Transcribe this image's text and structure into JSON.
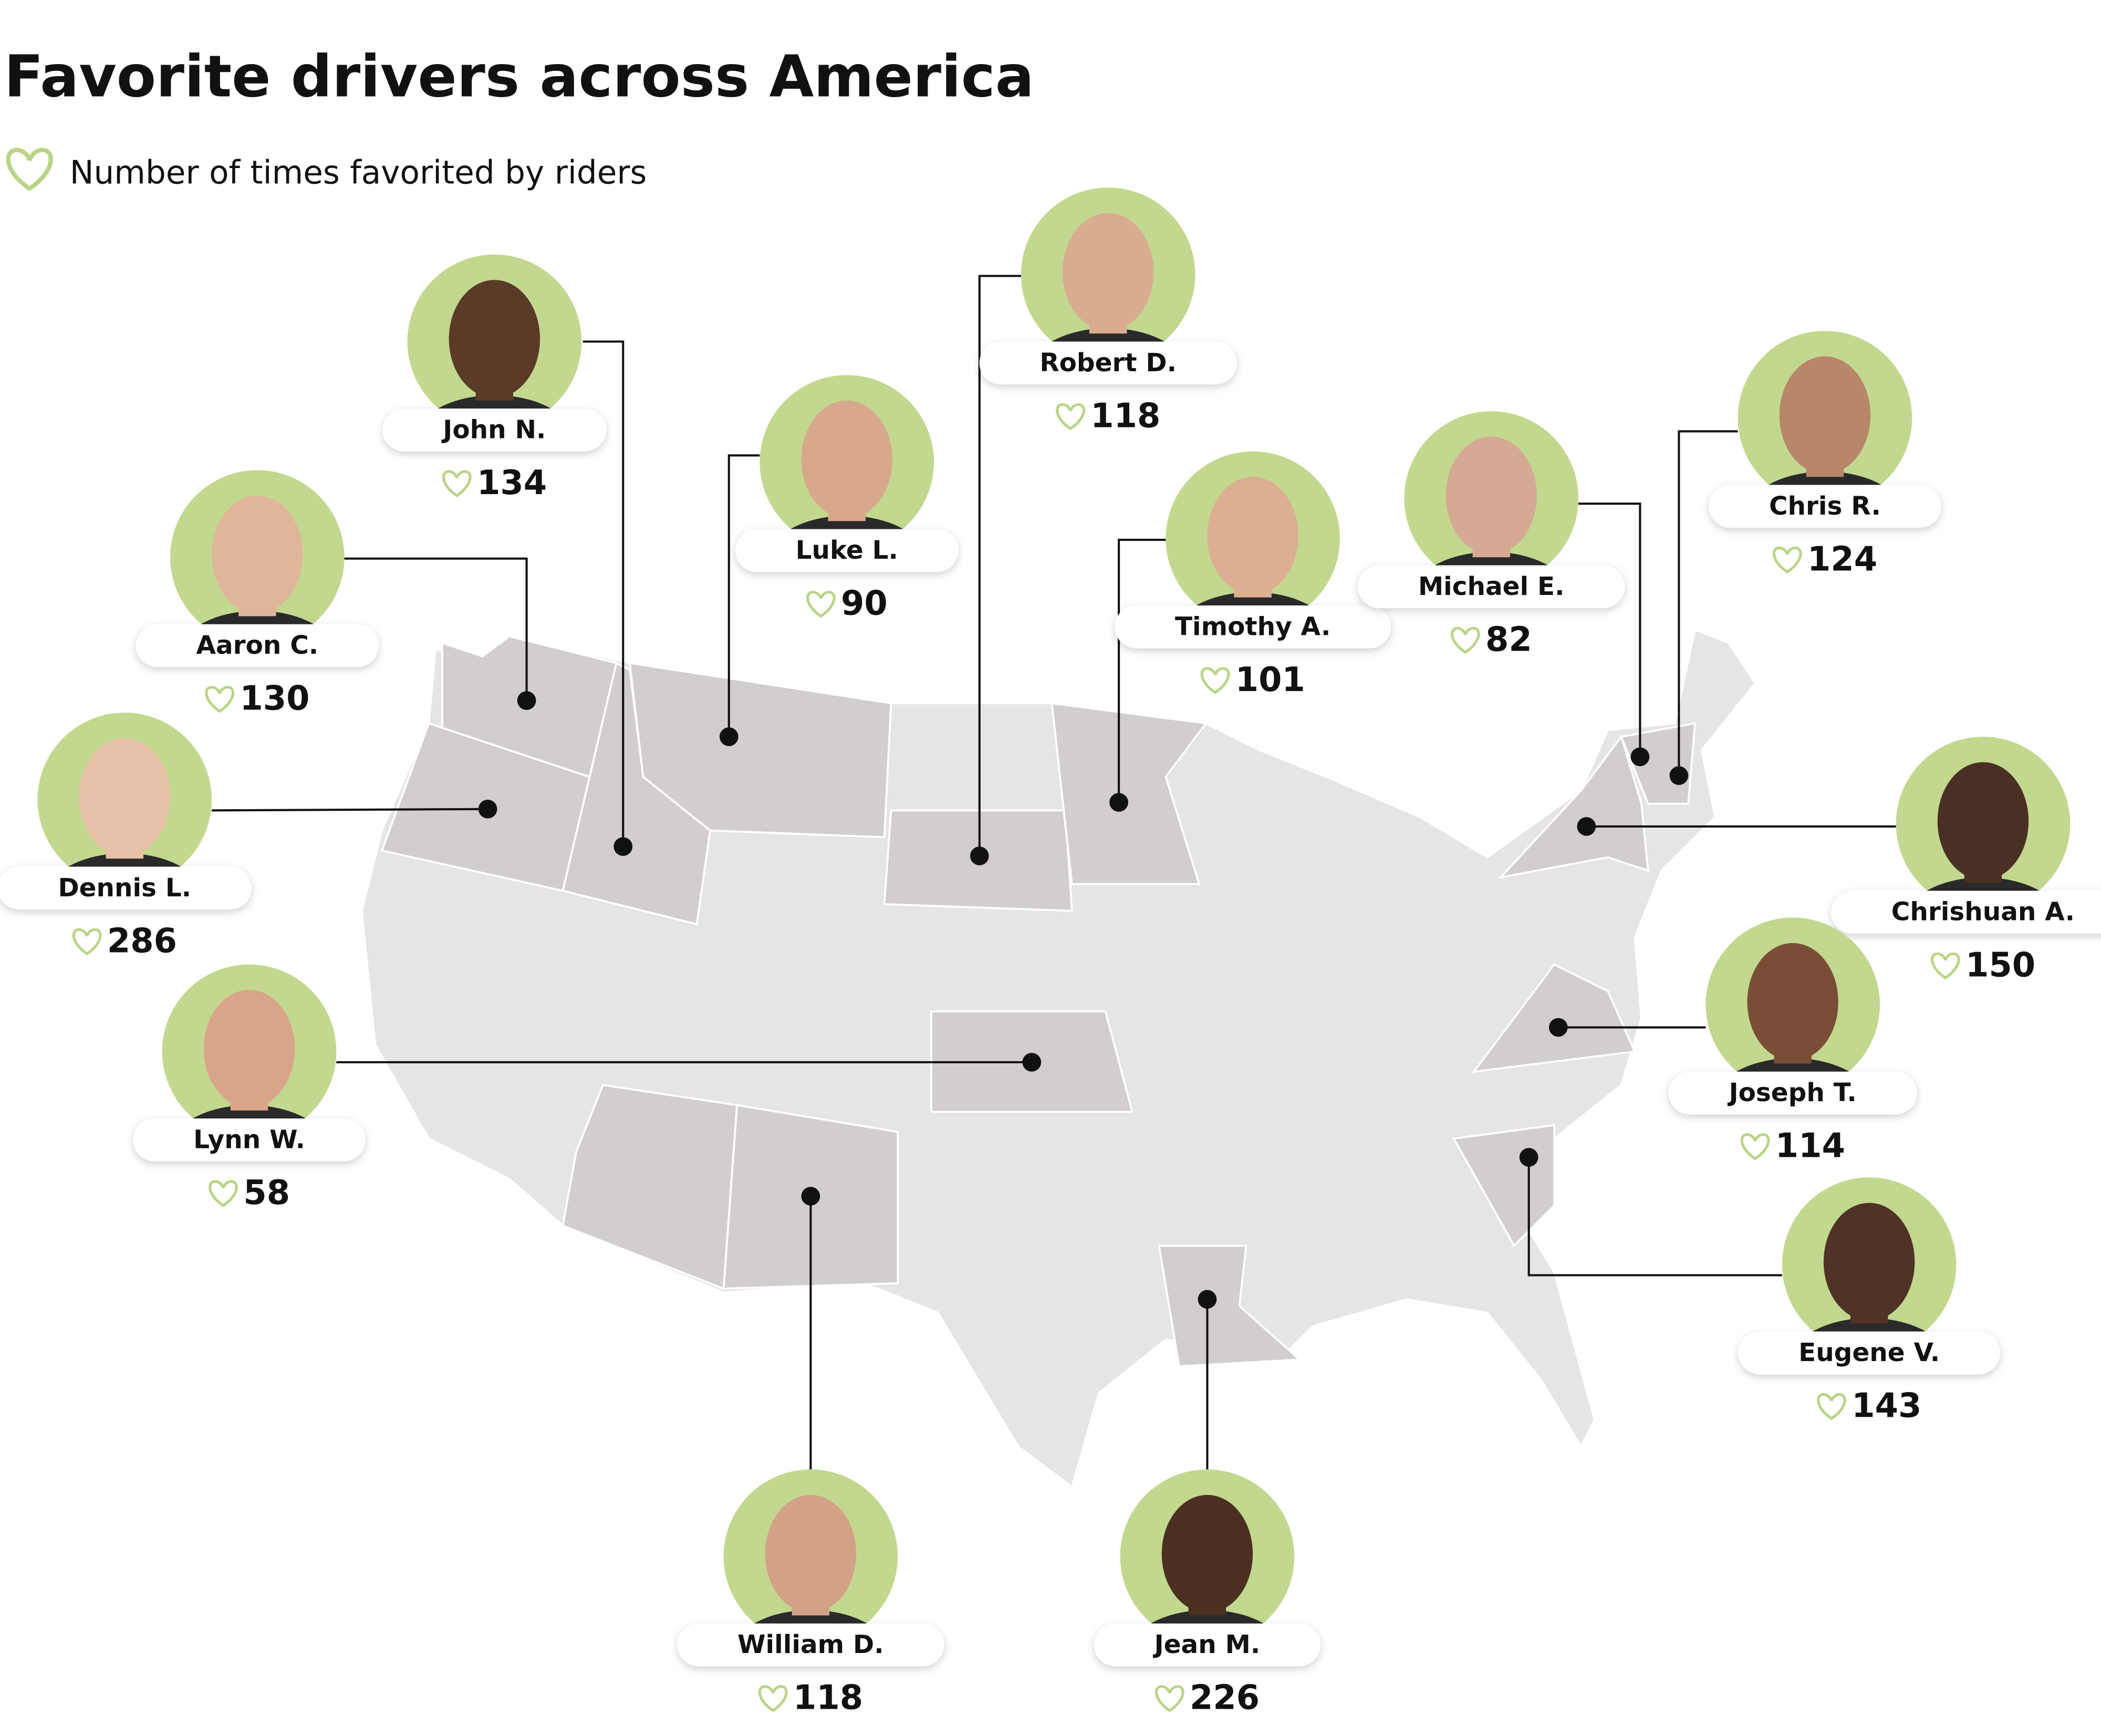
{
  "title": "Favorite drivers across America",
  "legend": {
    "label": "Number of times favorited by riders"
  },
  "drivers": [
    {
      "name": "John N.",
      "favorites": 134
    },
    {
      "name": "Aaron C.",
      "favorites": 130
    },
    {
      "name": "Dennis L.",
      "favorites": 286
    },
    {
      "name": "Lynn W.",
      "favorites": 58
    },
    {
      "name": "Luke L.",
      "favorites": 90
    },
    {
      "name": "Robert D.",
      "favorites": 118
    },
    {
      "name": "Timothy A.",
      "favorites": 101
    },
    {
      "name": "Michael E.",
      "favorites": 82
    },
    {
      "name": "Chris R.",
      "favorites": 124
    },
    {
      "name": "Chrishuan A.",
      "favorites": 150
    },
    {
      "name": "Joseph T.",
      "favorites": 114
    },
    {
      "name": "Eugene V.",
      "favorites": 143
    },
    {
      "name": "William D.",
      "favorites": 118
    },
    {
      "name": "Jean M.",
      "favorites": 226
    }
  ]
}
